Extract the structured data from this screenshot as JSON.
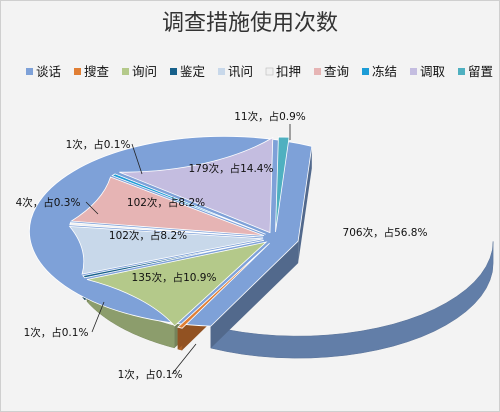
{
  "chart_data": {
    "type": "pie",
    "title": "调查措施使用次数",
    "unit": "次",
    "legend_position": "top",
    "categories": [
      "谈话",
      "搜查",
      "询问",
      "鉴定",
      "讯问",
      "扣押",
      "查询",
      "冻结",
      "调取",
      "留置"
    ],
    "values": [
      706,
      1,
      135,
      1,
      102,
      4,
      102,
      1,
      179,
      11
    ],
    "percentages": [
      56.8,
      0.1,
      10.9,
      0.1,
      8.2,
      0.3,
      8.2,
      0.1,
      14.4,
      0.9
    ],
    "labels": [
      "706次，占56.8%",
      "1次，占0.1%",
      "135次，占10.9%",
      "1次，占0.1%",
      "102次，占8.2%",
      "4次，占0.3%",
      "102次，占8.2%",
      "1次，占0.1%",
      "179次，占14.4%",
      "11次，占0.9%"
    ],
    "colors": [
      "#7ea1d8",
      "#e07e34",
      "#b4c98a",
      "#17608a",
      "#c8d8ea",
      "#f0f0f0",
      "#e6b4b4",
      "#1c9cd6",
      "#c4bde0",
      "#4fb0c0"
    ]
  }
}
